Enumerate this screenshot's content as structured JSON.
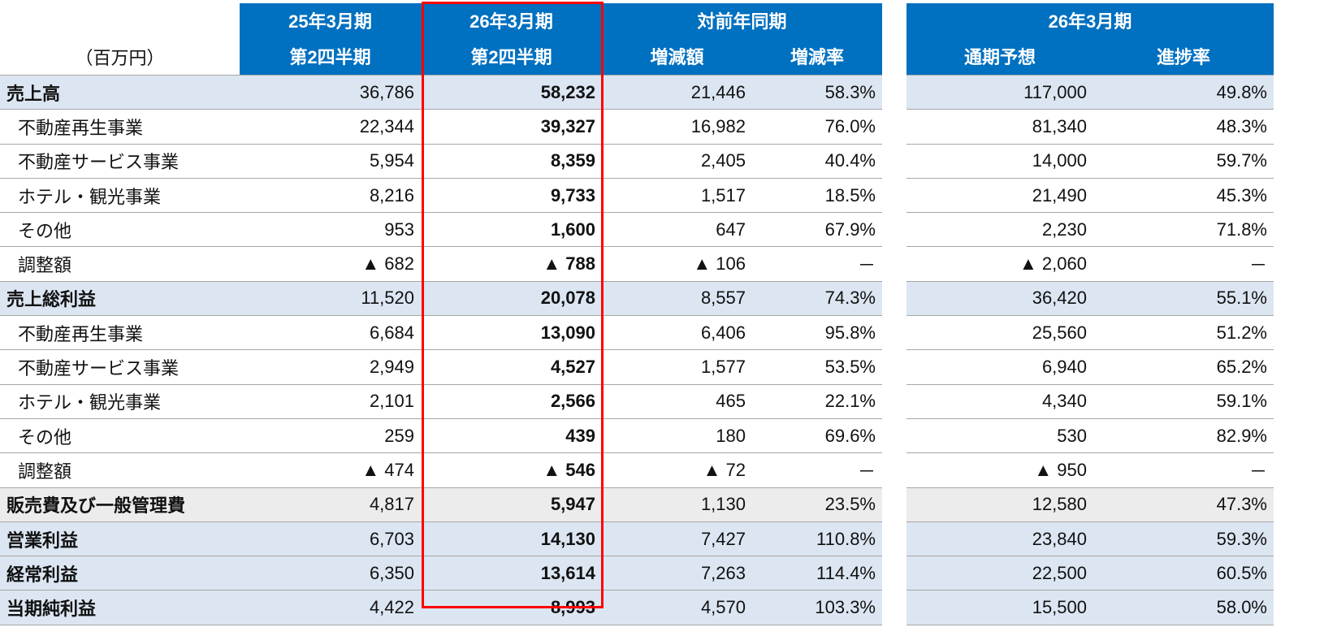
{
  "header": {
    "unit": "（百万円）",
    "col_prev_line1": "25年3月期",
    "col_prev_line2": "第2四半期",
    "col_cur_line1": "26年3月期",
    "col_cur_line2": "第2四半期",
    "yoy_group": "対前年同期",
    "yoy_amount": "増減額",
    "yoy_rate": "増減率",
    "forecast_group": "26年3月期",
    "forecast_full": "通期予想",
    "forecast_progress": "進捗率"
  },
  "colors": {
    "header_bg": "#0070c0",
    "highlight_row": "#dce6f2",
    "sga_row": "#ececec",
    "focus_box": "#ff0000"
  },
  "rows": [
    {
      "type": "major",
      "label": "売上高",
      "prev": "36,786",
      "cur": "58,232",
      "diff": "21,446",
      "rate": "58.3%",
      "forecast": "117,000",
      "progress": "49.8%"
    },
    {
      "type": "sub",
      "label": "不動産再生事業",
      "prev": "22,344",
      "cur": "39,327",
      "diff": "16,982",
      "rate": "76.0%",
      "forecast": "81,340",
      "progress": "48.3%"
    },
    {
      "type": "sub",
      "label": "不動産サービス事業",
      "prev": "5,954",
      "cur": "8,359",
      "diff": "2,405",
      "rate": "40.4%",
      "forecast": "14,000",
      "progress": "59.7%"
    },
    {
      "type": "sub",
      "label": "ホテル・観光事業",
      "prev": "8,216",
      "cur": "9,733",
      "diff": "1,517",
      "rate": "18.5%",
      "forecast": "21,490",
      "progress": "45.3%"
    },
    {
      "type": "sub",
      "label": "その他",
      "prev": "953",
      "cur": "1,600",
      "diff": "647",
      "rate": "67.9%",
      "forecast": "2,230",
      "progress": "71.8%"
    },
    {
      "type": "sub",
      "label": "調整額",
      "prev": "▲ 682",
      "cur": "▲ 788",
      "diff": "▲ 106",
      "rate": "－",
      "forecast": "▲ 2,060",
      "progress": "－"
    },
    {
      "type": "major",
      "label": "売上総利益",
      "prev": "11,520",
      "cur": "20,078",
      "diff": "8,557",
      "rate": "74.3%",
      "forecast": "36,420",
      "progress": "55.1%"
    },
    {
      "type": "sub",
      "label": "不動産再生事業",
      "prev": "6,684",
      "cur": "13,090",
      "diff": "6,406",
      "rate": "95.8%",
      "forecast": "25,560",
      "progress": "51.2%"
    },
    {
      "type": "sub",
      "label": "不動産サービス事業",
      "prev": "2,949",
      "cur": "4,527",
      "diff": "1,577",
      "rate": "53.5%",
      "forecast": "6,940",
      "progress": "65.2%"
    },
    {
      "type": "sub",
      "label": "ホテル・観光事業",
      "prev": "2,101",
      "cur": "2,566",
      "diff": "465",
      "rate": "22.1%",
      "forecast": "4,340",
      "progress": "59.1%"
    },
    {
      "type": "sub",
      "label": "その他",
      "prev": "259",
      "cur": "439",
      "diff": "180",
      "rate": "69.6%",
      "forecast": "530",
      "progress": "82.9%"
    },
    {
      "type": "sub",
      "label": "調整額",
      "prev": "▲ 474",
      "cur": "▲ 546",
      "diff": "▲ 72",
      "rate": "－",
      "forecast": "▲ 950",
      "progress": "－"
    },
    {
      "type": "sga",
      "label": "販売費及び一般管理費",
      "prev": "4,817",
      "cur": "5,947",
      "diff": "1,130",
      "rate": "23.5%",
      "forecast": "12,580",
      "progress": "47.3%"
    },
    {
      "type": "major",
      "label": "営業利益",
      "prev": "6,703",
      "cur": "14,130",
      "diff": "7,427",
      "rate": "110.8%",
      "forecast": "23,840",
      "progress": "59.3%"
    },
    {
      "type": "major",
      "label": "経常利益",
      "prev": "6,350",
      "cur": "13,614",
      "diff": "7,263",
      "rate": "114.4%",
      "forecast": "22,500",
      "progress": "60.5%"
    },
    {
      "type": "major",
      "label": "当期純利益",
      "prev": "4,422",
      "cur": "8,993",
      "diff": "4,570",
      "rate": "103.3%",
      "forecast": "15,500",
      "progress": "58.0%"
    }
  ]
}
